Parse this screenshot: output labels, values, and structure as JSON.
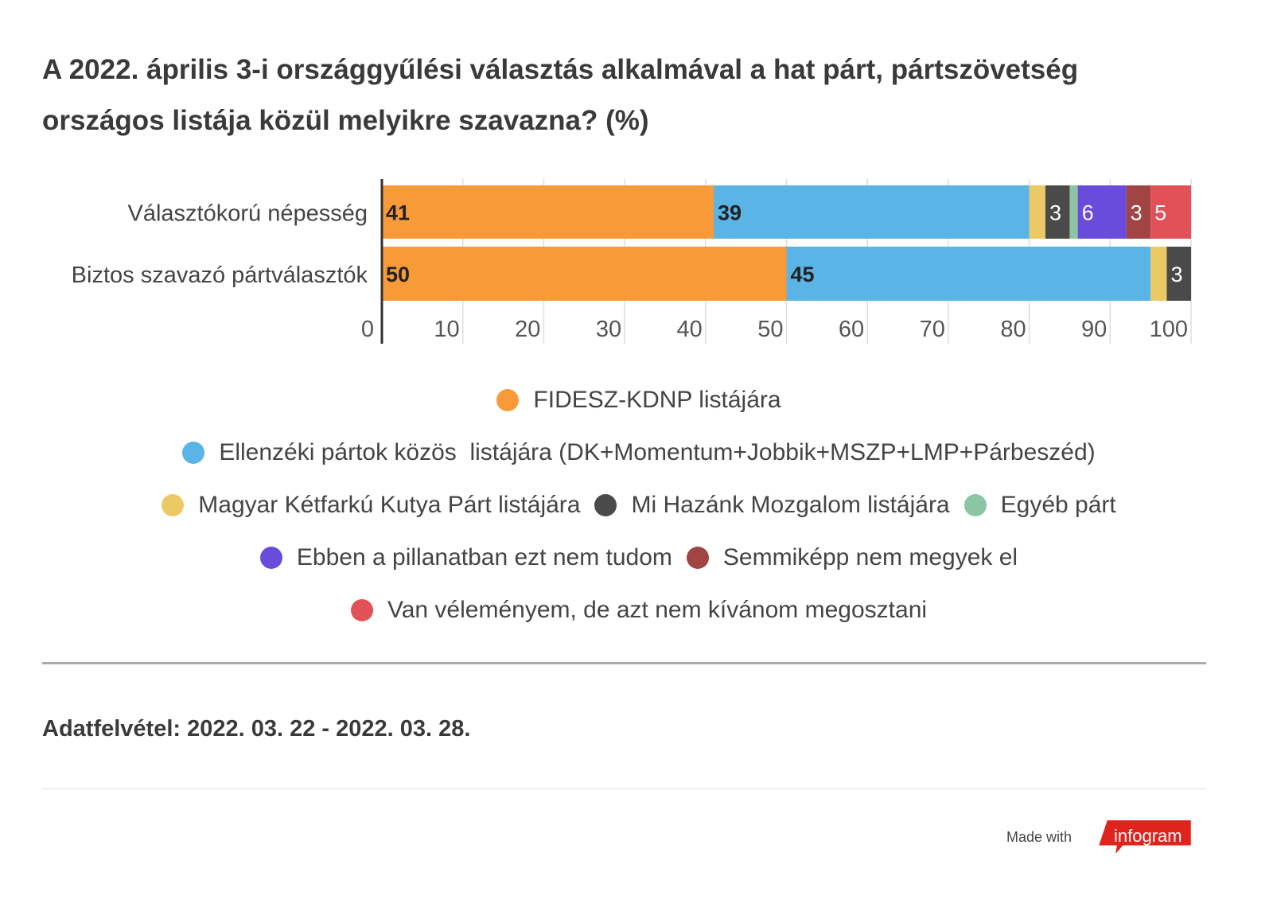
{
  "title": "A 2022. április 3-i országgyűlési választás alkalmával a hat párt, pártszövetség országos listája közül melyikre szavazna? (%)",
  "chart_data": {
    "type": "bar",
    "orientation": "horizontal",
    "stacked": true,
    "title": "A 2022. április 3-i országgyűlési választás alkalmával a hat párt, pártszövetség országos listája közül melyikre szavazna? (%)",
    "categories": [
      "Választókorú népesség",
      "Biztos szavazó pártválasztók"
    ],
    "xlim": [
      0,
      100
    ],
    "xticks": [
      "0",
      "10",
      "20",
      "30",
      "40",
      "50",
      "60",
      "70",
      "80",
      "90",
      "100"
    ],
    "grid": true,
    "legend_position": "bottom",
    "series": [
      {
        "name": "FIDESZ-KDNP listájára",
        "color": "#f99a38",
        "values": [
          41,
          50
        ],
        "label_color": "#222"
      },
      {
        "name": "Ellenzéki pártok közös  listájára (DK+Momentum+Jobbik+MSZP+LMP+Párbeszéd)",
        "color": "#5ab4e5",
        "values": [
          39,
          45
        ],
        "label_color": "#222"
      },
      {
        "name": "Magyar Kétfarkú Kutya Párt listájára",
        "color": "#ebc965",
        "values": [
          2,
          2
        ],
        "label_color": "#fff"
      },
      {
        "name": "Mi Hazánk Mozgalom listájára",
        "color": "#4a4a4a",
        "values": [
          3,
          3
        ],
        "label_color": "#fff"
      },
      {
        "name": "Egyéb párt",
        "color": "#8cc4a4",
        "values": [
          1,
          0
        ],
        "label_color": "#fff"
      },
      {
        "name": "Ebben a pillanatban ezt nem tudom",
        "color": "#6a4cdc",
        "values": [
          6,
          0
        ],
        "label_color": "#fff"
      },
      {
        "name": "Semmiképp nem megyek el",
        "color": "#a04444",
        "values": [
          3,
          0
        ],
        "label_color": "#fff"
      },
      {
        "name": "Van véleményem, de azt nem kívánom megosztani",
        "color": "#e05258",
        "values": [
          5,
          0
        ],
        "label_color": "#fff"
      }
    ]
  },
  "footer": {
    "note": "Adatfelvétel:  2022. 03. 22 - 2022. 03. 28.",
    "made_with": "Made with",
    "brand": "infogram",
    "brand_color": "#e0231c"
  }
}
